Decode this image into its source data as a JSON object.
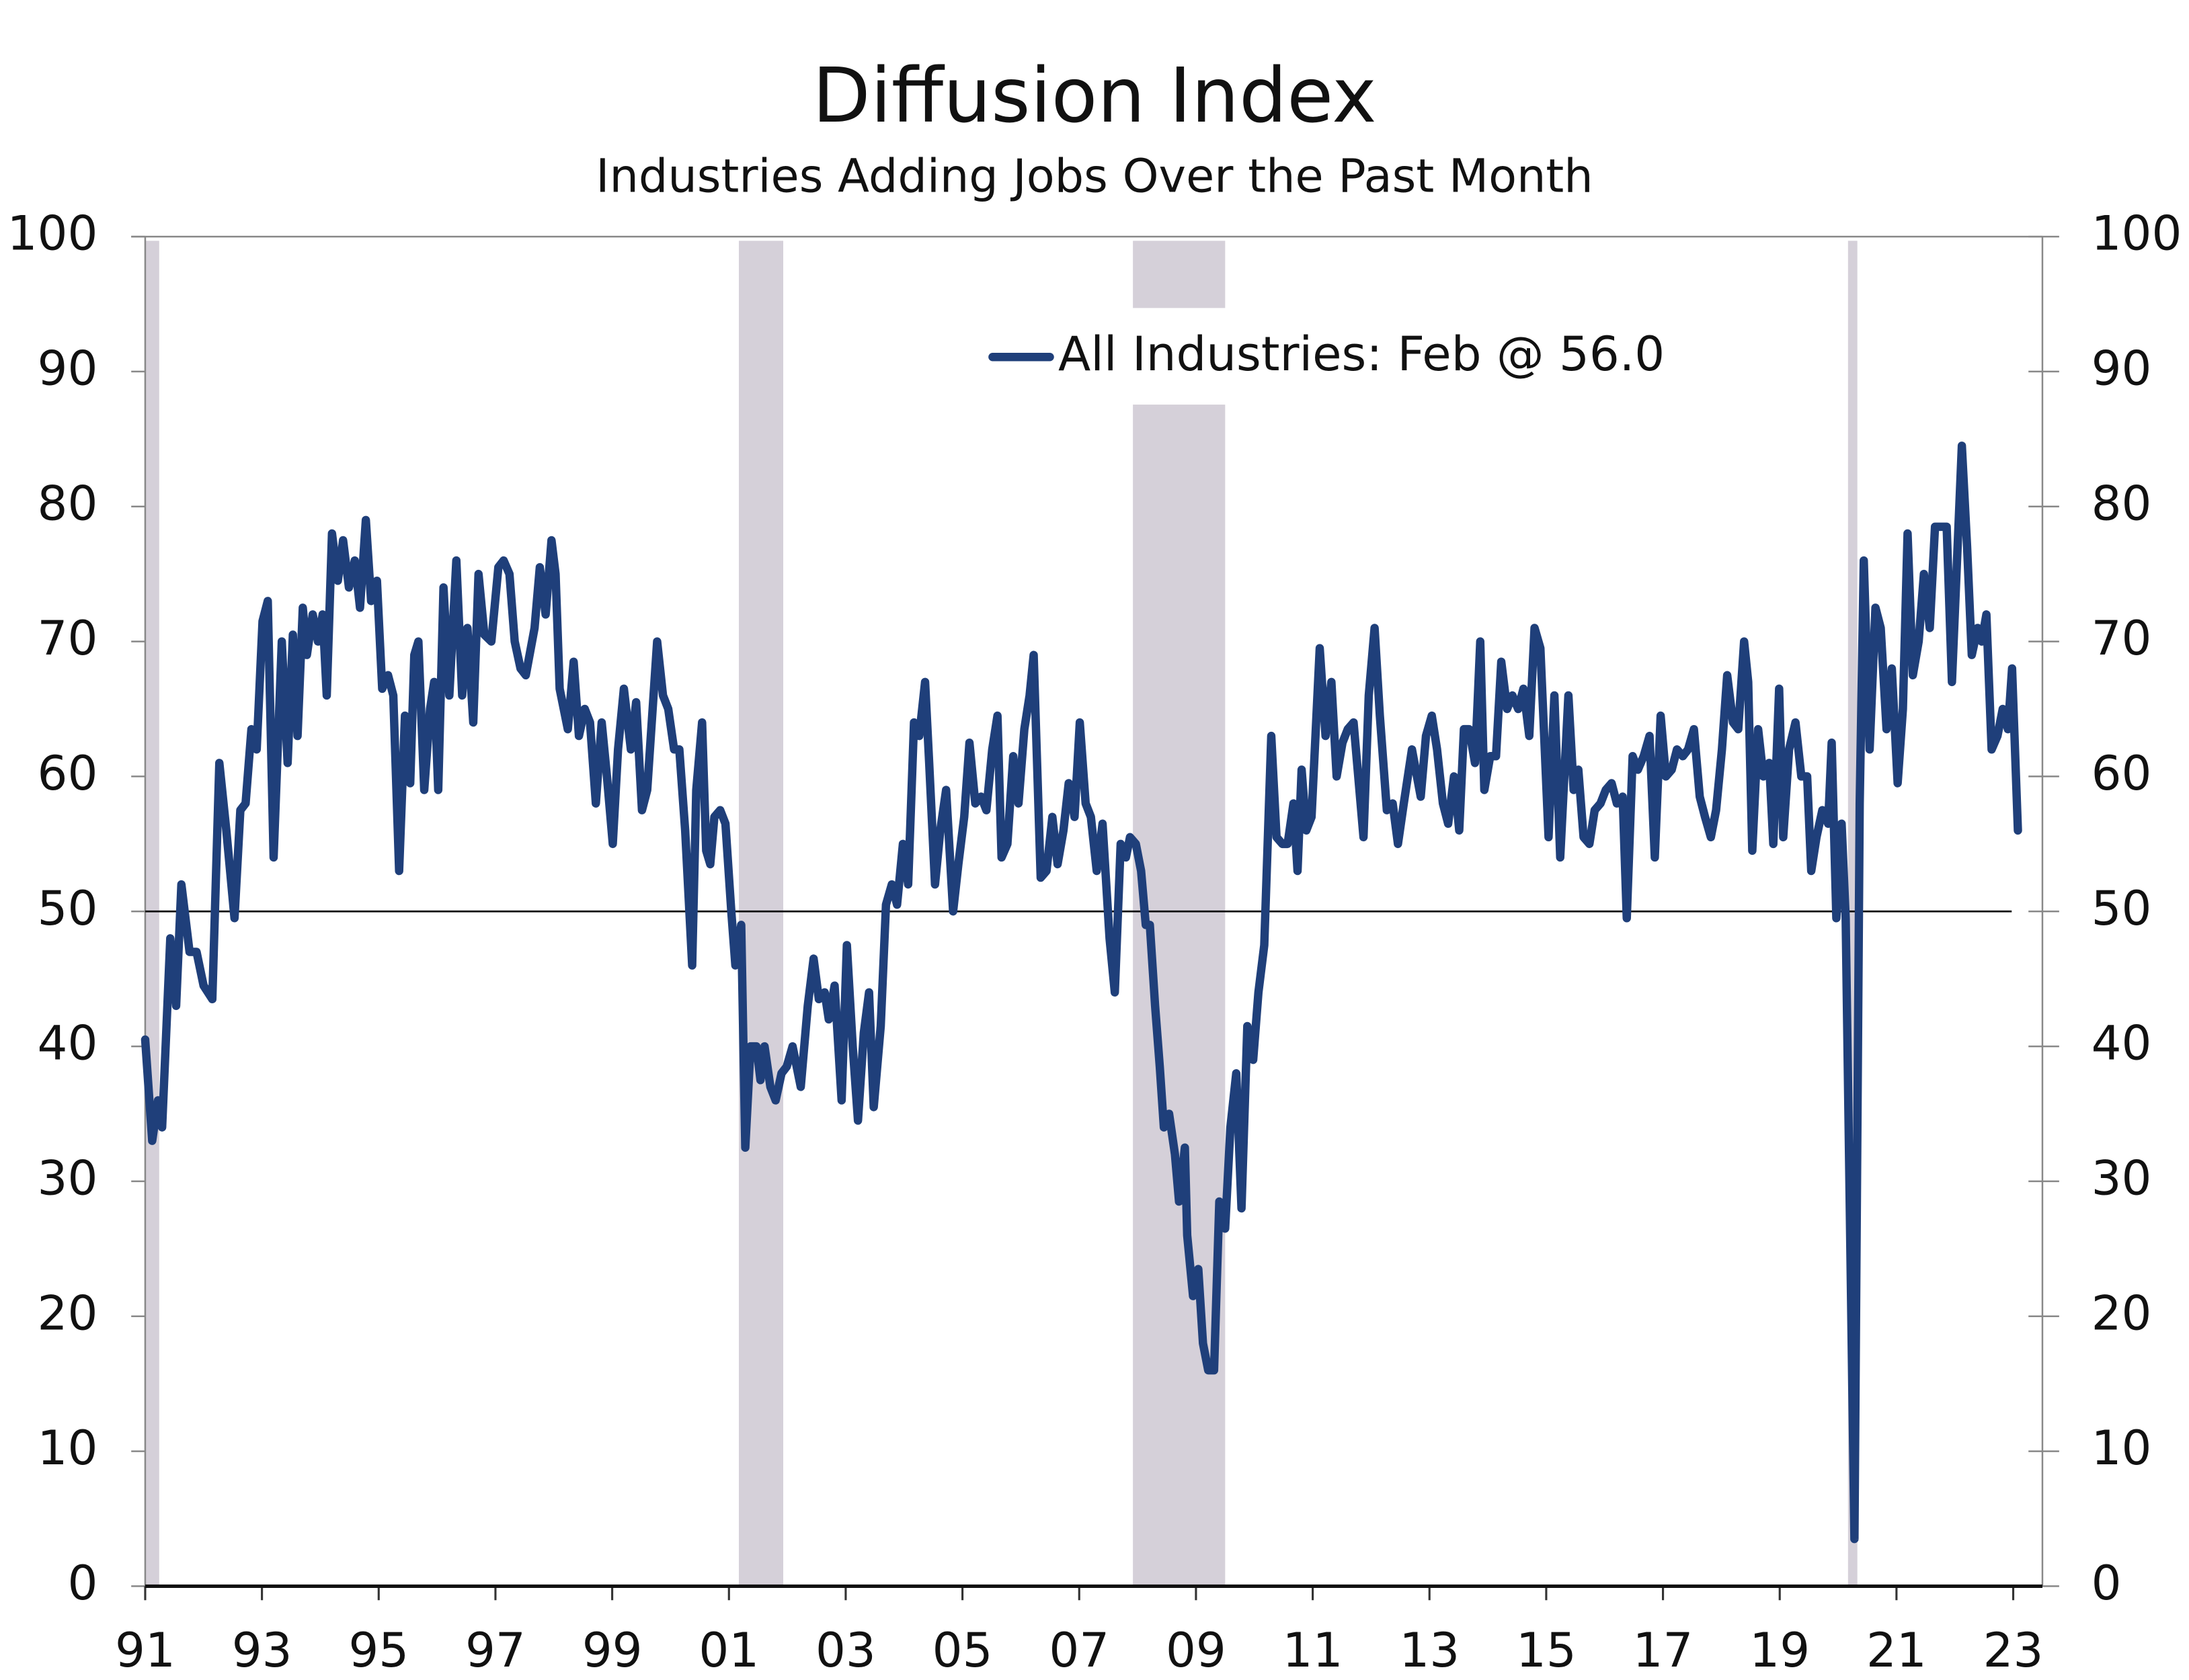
{
  "chart_data": {
    "type": "line",
    "title": "Diffusion Index",
    "subtitle": "Industries Adding Jobs Over the Past Month",
    "x": [
      1991.0,
      1991.12,
      1991.22,
      1991.29,
      1991.43,
      1991.53,
      1991.62,
      1991.76,
      1991.88,
      1992.0,
      1992.15,
      1992.27,
      1992.39,
      1992.53,
      1992.63,
      1992.72,
      1992.82,
      1992.91,
      1993.01,
      1993.1,
      1993.2,
      1993.34,
      1993.44,
      1993.53,
      1993.61,
      1993.7,
      1993.77,
      1993.87,
      1993.96,
      1994.04,
      1994.11,
      1994.2,
      1994.3,
      1994.39,
      1994.49,
      1994.59,
      1994.68,
      1994.78,
      1994.87,
      1994.97,
      1995.06,
      1995.16,
      1995.25,
      1995.35,
      1995.45,
      1995.54,
      1995.61,
      1995.68,
      1995.78,
      1995.88,
      1995.95,
      1996.02,
      1996.11,
      1996.21,
      1996.33,
      1996.43,
      1996.52,
      1996.62,
      1996.71,
      1996.81,
      1996.93,
      1997.05,
      1997.14,
      1997.24,
      1997.33,
      1997.43,
      1997.52,
      1997.67,
      1997.76,
      1997.86,
      1997.96,
      1998.03,
      1998.1,
      1998.24,
      1998.34,
      1998.43,
      1998.53,
      1998.62,
      1998.72,
      1998.82,
      1998.91,
      1999.01,
      1999.1,
      1999.2,
      1999.32,
      1999.41,
      1999.51,
      1999.6,
      1999.77,
      1999.87,
      1999.96,
      2000.06,
      2000.15,
      2000.25,
      2000.37,
      2000.44,
      2000.54,
      2000.61,
      2000.68,
      2000.75,
      2000.85,
      2000.94,
      2001.04,
      2001.11,
      2001.21,
      2001.28,
      2001.37,
      2001.47,
      2001.54,
      2001.61,
      2001.71,
      2001.8,
      2001.9,
      2001.99,
      2002.09,
      2002.23,
      2002.35,
      2002.45,
      2002.54,
      2002.64,
      2002.71,
      2002.81,
      2002.93,
      2003.02,
      2003.12,
      2003.21,
      2003.31,
      2003.4,
      2003.48,
      2003.6,
      2003.69,
      2003.79,
      2003.88,
      2003.98,
      2004.07,
      2004.17,
      2004.26,
      2004.36,
      2004.43,
      2004.53,
      2004.62,
      2004.72,
      2004.84,
      2004.93,
      2005.03,
      2005.12,
      2005.22,
      2005.32,
      2005.41,
      2005.51,
      2005.6,
      2005.67,
      2005.77,
      2005.87,
      2005.96,
      2006.06,
      2006.15,
      2006.22,
      2006.34,
      2006.44,
      2006.54,
      2006.63,
      2006.73,
      2006.82,
      2006.92,
      2007.01,
      2007.11,
      2007.2,
      2007.3,
      2007.4,
      2007.52,
      2007.61,
      2007.71,
      2007.8,
      2007.87,
      2007.97,
      2008.06,
      2008.14,
      2008.21,
      2008.3,
      2008.38,
      2008.45,
      2008.54,
      2008.64,
      2008.71,
      2008.81,
      2008.85,
      2008.95,
      2009.04,
      2009.12,
      2009.21,
      2009.31,
      2009.4,
      2009.5,
      2009.59,
      2009.69,
      2009.78,
      2009.88,
      2009.98,
      2010.07,
      2010.17,
      2010.29,
      2010.38,
      2010.48,
      2010.57,
      2010.67,
      2010.74,
      2010.81,
      2010.89,
      2010.98,
      2011.12,
      2011.22,
      2011.32,
      2011.41,
      2011.51,
      2011.6,
      2011.7,
      2011.87,
      2011.96,
      2012.06,
      2012.15,
      2012.27,
      2012.37,
      2012.46,
      2012.56,
      2012.7,
      2012.85,
      2012.94,
      2013.04,
      2013.13,
      2013.23,
      2013.32,
      2013.42,
      2013.51,
      2013.59,
      2013.68,
      2013.78,
      2013.87,
      2013.94,
      2014.04,
      2014.14,
      2014.23,
      2014.33,
      2014.42,
      2014.52,
      2014.61,
      2014.71,
      2014.8,
      2014.9,
      2015.04,
      2015.14,
      2015.24,
      2015.38,
      2015.47,
      2015.55,
      2015.64,
      2015.74,
      2015.83,
      2015.93,
      2016.02,
      2016.12,
      2016.21,
      2016.31,
      2016.38,
      2016.48,
      2016.57,
      2016.67,
      2016.77,
      2016.86,
      2016.96,
      2017.05,
      2017.15,
      2017.24,
      2017.34,
      2017.43,
      2017.53,
      2017.63,
      2017.72,
      2017.82,
      2017.91,
      2018.01,
      2018.1,
      2018.2,
      2018.29,
      2018.39,
      2018.46,
      2018.53,
      2018.63,
      2018.72,
      2018.82,
      2018.89,
      2018.99,
      2019.06,
      2019.16,
      2019.27,
      2019.37,
      2019.47,
      2019.54,
      2019.63,
      2019.73,
      2019.83,
      2019.89,
      2019.97,
      2020.06,
      2020.13,
      2020.21,
      2020.28,
      2020.37,
      2020.44,
      2020.54,
      2020.64,
      2020.73,
      2020.83,
      2020.92,
      2021.02,
      2021.11,
      2021.19,
      2021.28,
      2021.38,
      2021.47,
      2021.57,
      2021.66,
      2021.76,
      2021.86,
      2021.95,
      2022.12,
      2022.21,
      2022.29,
      2022.39,
      2022.46,
      2022.54,
      2022.63,
      2022.73,
      2022.82,
      2022.91,
      2022.98,
      2023.08
    ],
    "series": [
      {
        "name": "All Industries: Feb @ 56.0",
        "color": "#1f3f7a",
        "values": [
          40.5,
          33,
          36,
          34,
          48,
          43,
          52,
          47,
          47,
          44.5,
          43.5,
          61,
          56,
          49.5,
          57.5,
          58,
          63.5,
          62,
          71.5,
          73,
          54,
          70,
          61,
          70.5,
          63,
          72.5,
          69,
          72,
          70,
          72,
          66,
          78,
          74.5,
          77.5,
          74,
          76,
          72.5,
          79,
          73,
          74.5,
          66.5,
          67.5,
          66,
          53,
          64.5,
          59.5,
          69,
          70,
          59,
          65,
          67,
          59,
          74,
          66,
          76,
          66,
          71,
          64,
          75,
          70.5,
          70,
          75.5,
          76,
          75,
          70,
          68,
          67.5,
          71,
          75.5,
          72,
          77.5,
          75,
          66.5,
          63.5,
          68.5,
          63,
          65,
          64,
          58,
          64,
          60,
          55,
          62,
          66.5,
          62,
          65.5,
          57.5,
          59,
          70,
          66,
          65,
          62,
          62,
          56,
          46,
          59,
          64,
          54.5,
          53.5,
          57,
          57.5,
          56.5,
          50,
          46,
          49,
          32.5,
          40,
          40,
          37.5,
          40,
          37,
          36,
          38,
          38.5,
          40,
          37,
          43,
          46.5,
          43.5,
          44,
          42,
          44.5,
          36,
          47.5,
          40,
          34.5,
          41,
          44,
          35.5,
          41.5,
          50.5,
          52,
          50.5,
          55,
          52,
          64,
          63,
          67,
          61,
          52,
          56,
          59,
          50,
          53.5,
          57,
          62.5,
          58,
          58.5,
          57.5,
          62,
          64.5,
          54,
          55,
          61.5,
          58,
          63.5,
          66,
          69,
          52.5,
          53,
          57,
          53.5,
          56,
          59.5,
          57,
          64,
          58,
          57,
          53,
          56.5,
          48,
          44,
          55,
          54,
          55.5,
          55,
          53,
          49,
          49,
          43,
          38.5,
          34,
          35,
          32,
          28.5,
          32.5,
          26,
          21.5,
          23.5,
          18,
          16,
          16,
          28.5,
          26.5,
          34,
          38,
          28,
          41.5,
          39,
          44,
          47.5,
          63,
          55.5,
          55,
          55,
          58,
          53,
          60.5,
          56,
          57,
          69.5,
          63,
          67,
          60,
          62.5,
          63.5,
          64,
          55.5,
          66,
          71,
          64.5,
          57.5,
          58,
          55,
          58,
          62,
          58.5,
          63,
          64.5,
          62,
          58,
          56.5,
          60,
          56,
          63.5,
          63.5,
          61,
          70,
          59,
          61.5,
          61.5,
          68.5,
          65,
          66,
          65,
          66.5,
          63,
          71,
          69.5,
          55.5,
          66,
          54,
          66,
          59,
          60.5,
          55.5,
          55,
          57.5,
          58,
          59,
          59.5,
          58,
          58.5,
          49.5,
          61.5,
          60.5,
          61.5,
          63,
          54,
          64.5,
          60,
          60.5,
          62,
          61.5,
          62,
          63.5,
          58.5,
          57,
          55.5,
          57.5,
          62,
          67.5,
          64,
          63.5,
          70,
          67,
          54.5,
          63.5,
          60,
          61,
          55,
          66.5,
          55.5,
          62,
          64,
          60,
          60,
          53,
          55.5,
          57.5,
          56.5,
          62.5,
          49.5,
          56.5,
          49.5,
          25,
          3.5,
          58,
          76,
          62,
          72.5,
          71,
          63.5,
          68,
          59.5,
          65,
          78,
          67.5,
          70,
          75,
          71,
          78.5,
          78.5,
          78.5,
          67,
          84.5,
          77,
          69,
          71,
          70,
          72,
          62,
          63,
          65,
          63.5,
          68,
          56
        ]
      }
    ],
    "xlim": [
      1991,
      2023.5
    ],
    "xticks": [
      {
        "value": 1991,
        "label": "91"
      },
      {
        "value": 1993,
        "label": "93"
      },
      {
        "value": 1995,
        "label": "95"
      },
      {
        "value": 1997,
        "label": "97"
      },
      {
        "value": 1999,
        "label": "99"
      },
      {
        "value": 2001,
        "label": "01"
      },
      {
        "value": 2003,
        "label": "03"
      },
      {
        "value": 2005,
        "label": "05"
      },
      {
        "value": 2007,
        "label": "07"
      },
      {
        "value": 2009,
        "label": "09"
      },
      {
        "value": 2011,
        "label": "11"
      },
      {
        "value": 2013,
        "label": "13"
      },
      {
        "value": 2015,
        "label": "15"
      },
      {
        "value": 2017,
        "label": "17"
      },
      {
        "value": 2019,
        "label": "19"
      },
      {
        "value": 2021,
        "label": "21"
      },
      {
        "value": 2023,
        "label": "23"
      }
    ],
    "ylim": [
      0,
      100
    ],
    "yticks": [
      0,
      10,
      20,
      30,
      40,
      50,
      60,
      70,
      80,
      90,
      100
    ],
    "y2lim": [
      0,
      100
    ],
    "y2ticks": [
      0,
      10,
      20,
      30,
      40,
      50,
      60,
      70,
      80,
      90,
      100
    ],
    "reference_line": 50,
    "shaded": [
      [
        1991.0,
        1991.24
      ],
      [
        2001.17,
        2001.93
      ],
      [
        2007.92,
        2009.5
      ],
      [
        2020.17,
        2020.33
      ]
    ],
    "shade_color": "#d5d0d9",
    "legend": "top"
  }
}
